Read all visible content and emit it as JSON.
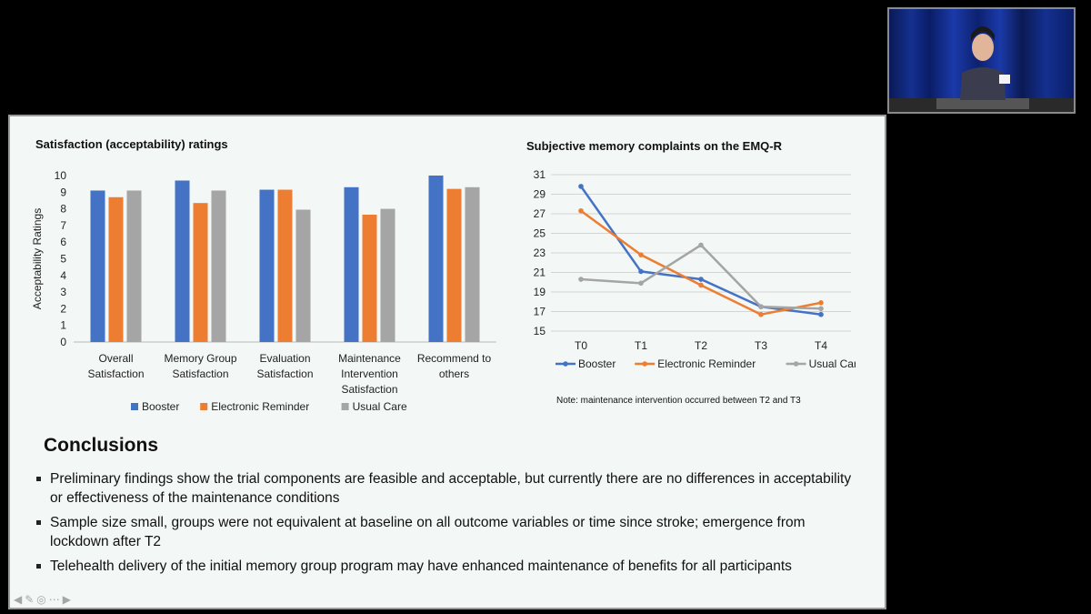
{
  "slide": {
    "conclusions_title": "Conclusions",
    "bullets": [
      "Preliminary findings show the trial components are feasible and acceptable, but currently there are no differences in acceptability or effectiveness of the maintenance conditions",
      "Sample size small, groups were not equivalent at baseline on all outcome variables or time since stroke; emergence from lockdown after T2",
      "Telehealth delivery of the initial memory group program may have enhanced maintenance of benefits for all participants"
    ],
    "note": "Note: maintenance intervention occurred between T2 and T3",
    "nav_icons": [
      "back-arrow-icon",
      "pen-icon",
      "pointer-icon",
      "more-icon",
      "forward-arrow-icon"
    ]
  },
  "colors": {
    "booster": "#4472C4",
    "electronic": "#ED7D31",
    "usual": "#A5A5A5"
  },
  "chart_data": [
    {
      "type": "bar",
      "title": "Satisfaction (acceptability) ratings",
      "ylabel": "Acceptability Ratings",
      "xlabel": "",
      "ylim": [
        0,
        10
      ],
      "yticks": [
        0,
        1,
        2,
        3,
        4,
        5,
        6,
        7,
        8,
        9,
        10
      ],
      "grid": false,
      "legend": "bottom",
      "categories": [
        [
          "Overall",
          "Satisfaction"
        ],
        [
          "Memory Group",
          "Satisfaction"
        ],
        [
          "Evaluation",
          "Satisfaction"
        ],
        [
          "Maintenance",
          "Intervention",
          "Satisfaction"
        ],
        [
          "Recommend to",
          "others"
        ]
      ],
      "series": [
        {
          "name": "Booster",
          "values": [
            9.1,
            9.7,
            9.15,
            9.3,
            10
          ]
        },
        {
          "name": "Electronic Reminder",
          "values": [
            8.7,
            8.35,
            9.15,
            7.65,
            9.2
          ]
        },
        {
          "name": "Usual Care",
          "values": [
            9.1,
            9.1,
            7.95,
            8.0,
            9.3
          ]
        }
      ]
    },
    {
      "type": "line",
      "title": "Subjective memory complaints on the EMQ-R",
      "xlabel": "",
      "ylabel": "",
      "ylim": [
        15,
        31
      ],
      "yticks": [
        15,
        17,
        19,
        21,
        23,
        25,
        27,
        29,
        31
      ],
      "grid": true,
      "legend": "bottom",
      "x": [
        "T0",
        "T1",
        "T2",
        "T3",
        "T4"
      ],
      "series": [
        {
          "name": "Booster",
          "values": [
            29.8,
            21.1,
            20.3,
            17.5,
            16.7
          ]
        },
        {
          "name": "Electronic Reminder",
          "values": [
            27.3,
            22.8,
            19.7,
            16.7,
            17.9
          ]
        },
        {
          "name": "Usual Care",
          "values": [
            20.3,
            19.9,
            23.8,
            17.5,
            17.3
          ]
        }
      ]
    }
  ]
}
